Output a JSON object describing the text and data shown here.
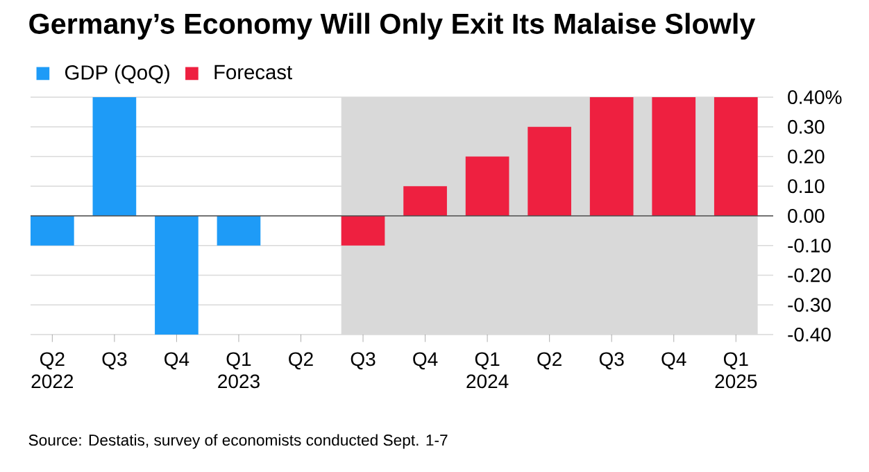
{
  "chart_data": {
    "type": "bar",
    "title": "Germany’s Economy Will Only Exit Its Malaise Slowly",
    "categories": [
      "Q2 2022",
      "Q3",
      "Q4",
      "Q1 2023",
      "Q2",
      "Q3",
      "Q4",
      "Q1 2024",
      "Q2",
      "Q3",
      "Q4",
      "Q1 2025"
    ],
    "series": [
      {
        "name": "GDP (QoQ)",
        "color": "#1e9bf7",
        "values": [
          -0.1,
          0.4,
          -0.4,
          -0.1,
          0.0,
          null,
          null,
          null,
          null,
          null,
          null,
          null
        ]
      },
      {
        "name": "Forecast",
        "color": "#ee2040",
        "values": [
          null,
          null,
          null,
          null,
          null,
          -0.1,
          0.1,
          0.2,
          0.3,
          0.4,
          0.4,
          0.4
        ]
      }
    ],
    "ylim": [
      -0.4,
      0.4
    ],
    "yticks": [
      {
        "value": -0.4,
        "label": "-0.40"
      },
      {
        "value": -0.3,
        "label": "-0.30"
      },
      {
        "value": -0.2,
        "label": "-0.20"
      },
      {
        "value": -0.1,
        "label": "-0.10"
      },
      {
        "value": 0,
        "label": "0.00"
      },
      {
        "value": 0.1,
        "label": "0.10"
      },
      {
        "value": 0.2,
        "label": "0.20"
      },
      {
        "value": 0.3,
        "label": "0.30"
      },
      {
        "value": 0.4,
        "label": "0.40%"
      }
    ],
    "grid": "y",
    "legend": "top left",
    "annotations": [
      "Source: Destatis, survey of economists conducted Sept. 1-7"
    ]
  }
}
